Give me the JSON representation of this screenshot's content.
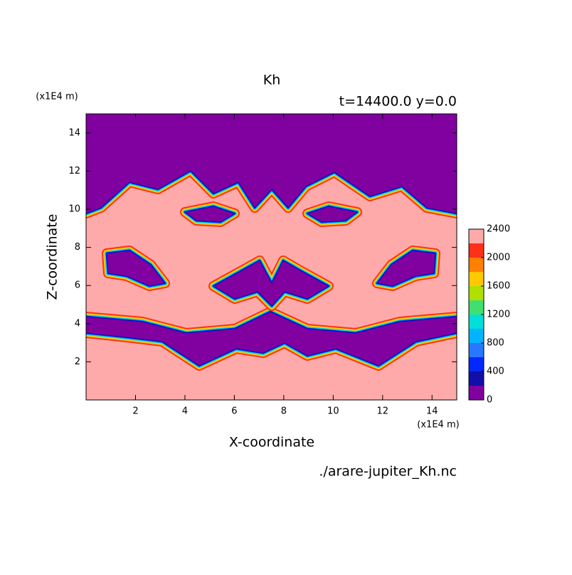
{
  "chart_data": {
    "type": "contour",
    "title": "Kh",
    "subtitle": "t=14400.0 y=0.0",
    "x_label": "X-coordinate",
    "y_label": "Z-coordinate",
    "x_unit": "(x1E4 m)",
    "y_unit": "(x1E4 m)",
    "footer": "./arare-jupiter_Kh.nc",
    "xlim": [
      0,
      15
    ],
    "ylim": [
      0,
      15
    ],
    "xticks": [
      2,
      4,
      6,
      8,
      10,
      12,
      14
    ],
    "yticks": [
      2,
      4,
      6,
      8,
      10,
      12,
      14
    ],
    "levels": [
      0,
      200,
      400,
      600,
      800,
      1000,
      1200,
      1400,
      1600,
      1800,
      2000,
      2200,
      2400
    ],
    "colors": [
      "#8000a0",
      "#1010a8",
      "#0028ff",
      "#2878ff",
      "#00b4ff",
      "#00e0d8",
      "#40e070",
      "#b0e000",
      "#ffc800",
      "#ff8000",
      "#ff3018",
      "#ffaaaa"
    ],
    "colorbar_ticks": [
      0,
      400,
      800,
      1200,
      1600,
      2000,
      2400
    ]
  }
}
